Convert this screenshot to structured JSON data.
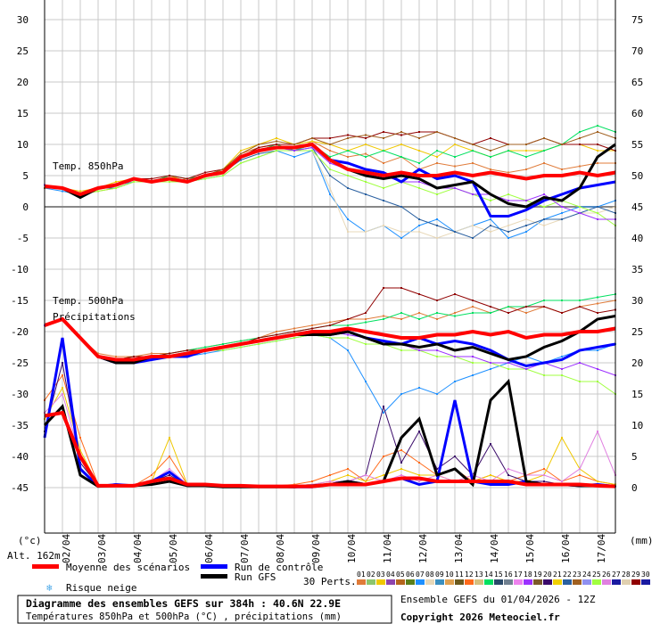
{
  "chart_data": {
    "type": "line",
    "title": "Diagramme des ensembles GEFS sur 384h : 40.6N 22.9E",
    "subtitle": "Températures 850hPa et 500hPa (°C) , précipitations (mm)",
    "run_label": "Ensemble GEFS du 01/04/2026 - 12Z",
    "copyright": "Copyright 2026 Meteociel.fr",
    "left_unit": "(°c)",
    "right_unit": "(mm)",
    "altitude": "Alt. 162m",
    "label_850": "Temp. 850hPa",
    "label_500": "Temp. 500hPa",
    "label_precip": "Précipitations",
    "left_ticks": [
      30,
      25,
      20,
      15,
      10,
      5,
      0,
      -5,
      -10,
      -15,
      -20,
      -25,
      -30,
      -35,
      -40,
      -45
    ],
    "right_ticks": [
      75,
      70,
      65,
      60,
      55,
      50,
      45,
      40,
      35,
      30,
      25,
      20,
      15,
      10,
      5,
      0
    ],
    "ylim_left": [
      -52,
      33
    ],
    "x_step_hours": 12,
    "x_labels": [
      "02/04",
      "03/04",
      "04/04",
      "05/04",
      "06/04",
      "07/04",
      "08/04",
      "09/04",
      "10/04",
      "11/04",
      "12/04",
      "13/04",
      "14/04",
      "15/04",
      "16/04",
      "17/04"
    ],
    "legend": {
      "mean": "Moyenne des scénarios",
      "control": "Run de contrôle",
      "gfs": "Run GFS",
      "snow": "Risque neige",
      "perts": "30 Perts."
    },
    "colors": {
      "mean": "#ff0000",
      "control": "#0000ff",
      "gfs": "#000000",
      "snow": "#4aa8e8"
    },
    "pert_colors": [
      "#e07b39",
      "#8dc56c",
      "#f0c800",
      "#8e44ad",
      "#b5651d",
      "#5a7f1a",
      "#1e90ff",
      "#e8d8b8",
      "#3a8fc0",
      "#e0a050",
      "#6b5a1e",
      "#ff6a1a",
      "#d4c080",
      "#00e060",
      "#2a4a6a",
      "#708090",
      "#ee82ee",
      "#9b30ff",
      "#7b5a2a",
      "#3a0a6a",
      "#f0d000",
      "#2a60a0",
      "#a06020",
      "#9090f0",
      "#a0ff40",
      "#e080e0",
      "#1a1aa0",
      "#e0d0b0",
      "#900000",
      "#1a1aa0"
    ],
    "pert_ids": [
      "01",
      "02",
      "03",
      "04",
      "05",
      "06",
      "07",
      "08",
      "09",
      "10",
      "11",
      "12",
      "13",
      "14",
      "15",
      "16",
      "17",
      "18",
      "19",
      "20",
      "21",
      "22",
      "23",
      "24",
      "25",
      "26",
      "27",
      "28",
      "29",
      "30"
    ],
    "t850": {
      "mean": [
        3.3,
        3,
        2,
        3,
        3.5,
        4.5,
        4,
        4.5,
        4,
        5,
        5.5,
        8,
        9,
        9.5,
        9.5,
        10,
        7.5,
        6,
        5.5,
        5,
        5.5,
        5,
        5,
        5.5,
        5,
        5.5,
        5,
        4.5,
        5,
        5,
        5.5,
        5,
        5.5
      ],
      "control": [
        3.3,
        3,
        2,
        3,
        3.5,
        4.5,
        4,
        4.5,
        4,
        5,
        5.5,
        8,
        9,
        9.5,
        9.5,
        10,
        7.5,
        7,
        6,
        5.5,
        4,
        6,
        4.5,
        5,
        4,
        -1.5,
        -1.5,
        -0.5,
        1,
        2,
        3,
        3.5,
        4
      ],
      "gfs": [
        3.3,
        3,
        1.5,
        3,
        3.5,
        4.5,
        4,
        4.5,
        4,
        5,
        5.5,
        8,
        9,
        9.5,
        9.5,
        10,
        7.5,
        6,
        5,
        4.5,
        5,
        4.5,
        3,
        3.5,
        4,
        2,
        0.5,
        0,
        1.5,
        1,
        3,
        8,
        10
      ],
      "perts": [
        {
          "id": "01",
          "values": [
            3,
            3,
            2,
            2.5,
            3,
            4,
            4,
            4,
            4.5,
            5,
            6,
            8.5,
            9.5,
            10,
            9,
            10.5,
            9,
            8,
            8.5,
            7,
            8,
            6,
            7,
            6.5,
            7,
            6,
            5.5,
            6,
            7,
            6,
            6.5,
            7,
            7
          ]
        },
        {
          "id": "03",
          "values": [
            3.5,
            3,
            2.5,
            3,
            4,
            4.5,
            4,
            5,
            4,
            5,
            6,
            9,
            10,
            11,
            10,
            10.5,
            10,
            9,
            10,
            9,
            10,
            9,
            8,
            10,
            9,
            8,
            9,
            9,
            9,
            10,
            10,
            9,
            9
          ]
        },
        {
          "id": "07",
          "values": [
            3,
            2.5,
            2,
            3,
            3.5,
            4,
            4,
            4,
            4,
            4.5,
            5,
            7,
            8,
            9,
            8,
            9,
            2,
            -2,
            -4,
            -3,
            -5,
            -3,
            -2,
            -4,
            -3,
            -2,
            -5,
            -4,
            -2,
            -1,
            0,
            0,
            1
          ]
        },
        {
          "id": "08",
          "values": [
            3,
            3,
            2,
            3,
            3,
            4,
            4,
            4.5,
            4,
            5,
            5,
            7,
            8,
            9,
            9,
            9,
            3,
            -4,
            -4,
            -3,
            -4,
            -4,
            -5,
            -4,
            -3,
            -4,
            -3,
            -2,
            -3,
            -2,
            -1,
            -1,
            0
          ]
        },
        {
          "id": "14",
          "values": [
            3.5,
            3,
            2,
            3,
            3.5,
            4.5,
            4,
            5,
            4.5,
            5,
            6,
            8,
            9,
            10,
            9,
            10,
            8,
            9,
            8,
            9,
            8,
            7,
            9,
            8,
            9,
            8,
            9,
            8,
            9,
            10,
            12,
            13,
            12
          ]
        },
        {
          "id": "22",
          "values": [
            3,
            3,
            2,
            3,
            3,
            4,
            4,
            4,
            4,
            5,
            5.5,
            7.5,
            8.5,
            9,
            9,
            9.5,
            5,
            3,
            2,
            1,
            0,
            -2,
            -3,
            -4,
            -5,
            -3,
            -4,
            -3,
            -2,
            -2,
            -1,
            0,
            -1
          ]
        },
        {
          "id": "29",
          "values": [
            3.5,
            3,
            2,
            3,
            3.5,
            4.5,
            4.5,
            5,
            4.5,
            5.5,
            6,
            8,
            9.5,
            10,
            10,
            11,
            11,
            11.5,
            11,
            12,
            11.5,
            12,
            12,
            11,
            10,
            11,
            10,
            10,
            11,
            10,
            10,
            10,
            9
          ]
        },
        {
          "id": "25",
          "values": [
            3,
            3,
            2,
            2.5,
            3,
            4,
            4,
            4,
            4,
            4.5,
            5,
            7,
            8,
            9,
            9,
            9,
            6,
            5,
            4,
            3,
            4,
            3,
            2,
            3,
            2,
            1,
            2,
            1,
            0,
            1,
            0,
            -1,
            -3
          ]
        },
        {
          "id": "18",
          "values": [
            3.5,
            3,
            2,
            3,
            3.5,
            4.5,
            4,
            4.5,
            4,
            5,
            5.5,
            8,
            9,
            9.5,
            9,
            9.5,
            7,
            6,
            5,
            5,
            4,
            4,
            3,
            3,
            2,
            2,
            1,
            1,
            2,
            0,
            -1,
            -2,
            -2
          ]
        },
        {
          "id": "23",
          "values": [
            3,
            3,
            2,
            3,
            3.5,
            4.5,
            4,
            4.5,
            4,
            5,
            6,
            8.5,
            10,
            10.5,
            10,
            11,
            10,
            11,
            11.5,
            11,
            12,
            11,
            12,
            11,
            10,
            9,
            10,
            10,
            11,
            10,
            11,
            12,
            11
          ]
        }
      ]
    },
    "t500": {
      "mean": [
        -19,
        -18,
        -21,
        -24,
        -24.5,
        -24.5,
        -24,
        -24,
        -23.5,
        -23,
        -22.5,
        -22,
        -21.5,
        -21,
        -20.5,
        -20,
        -20,
        -19.5,
        -20,
        -20.5,
        -21,
        -21,
        -20.5,
        -20.5,
        -20,
        -20.5,
        -20,
        -21,
        -20.5,
        -20.5,
        -20,
        -20,
        -19.5
      ],
      "control": [
        -19,
        -18,
        -21,
        -24,
        -25,
        -25,
        -24.5,
        -24,
        -24,
        -23,
        -22.5,
        -22,
        -21.5,
        -21,
        -20.5,
        -20,
        -20.5,
        -20,
        -21,
        -21.5,
        -22,
        -21,
        -22,
        -21.5,
        -22,
        -23,
        -24.5,
        -25.5,
        -25,
        -24.5,
        -23,
        -22.5,
        -22
      ],
      "gfs": [
        -19,
        -18,
        -21,
        -24,
        -25,
        -25,
        -24,
        -24,
        -23.5,
        -23,
        -22.5,
        -22,
        -21.5,
        -21,
        -20.5,
        -20.5,
        -20.5,
        -20,
        -21,
        -22,
        -22,
        -22.5,
        -22,
        -23,
        -22.5,
        -23.5,
        -24.5,
        -24,
        -22.5,
        -21.5,
        -20,
        -18,
        -17.5
      ],
      "perts": [
        {
          "id": "01",
          "values": [
            -19,
            -18,
            -21,
            -23.5,
            -24,
            -24,
            -23.5,
            -23.5,
            -23,
            -22.5,
            -22,
            -21.5,
            -21,
            -20,
            -19.5,
            -19,
            -18.5,
            -18,
            -18,
            -17.5,
            -18,
            -17,
            -18,
            -17,
            -16,
            -17,
            -16,
            -17,
            -16,
            -17,
            -16,
            -15.5,
            -15
          ]
        },
        {
          "id": "07",
          "values": [
            -19,
            -18,
            -21,
            -24,
            -24.5,
            -24.5,
            -24,
            -24,
            -24,
            -23.5,
            -23,
            -22.5,
            -22,
            -21.5,
            -21,
            -20.5,
            -21,
            -23,
            -28,
            -33,
            -30,
            -29,
            -30,
            -28,
            -27,
            -26,
            -25,
            -24,
            -25,
            -24,
            -23,
            -23,
            -22
          ]
        },
        {
          "id": "14",
          "values": [
            -19,
            -18,
            -21,
            -24,
            -24.5,
            -24,
            -24,
            -23.5,
            -23,
            -22.5,
            -22,
            -21.5,
            -21,
            -20.5,
            -20,
            -19.5,
            -19,
            -19,
            -18.5,
            -18,
            -17,
            -18,
            -17,
            -17.5,
            -17,
            -17,
            -16,
            -16,
            -15,
            -15,
            -15,
            -14.5,
            -14
          ]
        },
        {
          "id": "29",
          "values": [
            -19,
            -18,
            -21,
            -24,
            -24.5,
            -24,
            -24,
            -23.5,
            -23,
            -23,
            -22.5,
            -22,
            -21,
            -20.5,
            -20,
            -19.5,
            -19,
            -18,
            -17,
            -13,
            -13,
            -14,
            -15,
            -14,
            -15,
            -16,
            -17,
            -16,
            -16,
            -17,
            -16,
            -17,
            -16.5
          ]
        },
        {
          "id": "25",
          "values": [
            -19,
            -18,
            -21,
            -24,
            -25,
            -25,
            -24.5,
            -24,
            -24,
            -23,
            -23,
            -22.5,
            -22,
            -21.5,
            -21,
            -20.5,
            -21,
            -21,
            -22,
            -22,
            -23,
            -23,
            -24,
            -24,
            -25,
            -25,
            -26,
            -26,
            -27,
            -27,
            -28,
            -28,
            -30
          ]
        },
        {
          "id": "18",
          "values": [
            -19,
            -18,
            -21,
            -24,
            -24.5,
            -24.5,
            -24,
            -24,
            -23.5,
            -23,
            -22.5,
            -22,
            -21.5,
            -21,
            -20.5,
            -20,
            -20,
            -20.5,
            -21,
            -22,
            -22,
            -23,
            -23,
            -24,
            -24,
            -25,
            -25,
            -26,
            -25,
            -26,
            -25,
            -26,
            -27
          ]
        }
      ]
    },
    "precip": {
      "mean": [
        11.5,
        12,
        5,
        0.3,
        0.3,
        0.3,
        1,
        1.5,
        0.5,
        0.5,
        0.3,
        0.3,
        0.2,
        0.2,
        0.2,
        0.2,
        0.5,
        0.5,
        0.5,
        1,
        1.5,
        1.5,
        1,
        1,
        1,
        1,
        1,
        0.5,
        0.5,
        0.5,
        0.5,
        0.3,
        0.2
      ],
      "control": [
        8,
        24,
        3,
        0.2,
        0.5,
        0.3,
        1,
        2.5,
        0.3,
        0.5,
        0.2,
        0.2,
        0.2,
        0.2,
        0.1,
        0.1,
        0.5,
        1,
        0.5,
        1,
        1.5,
        0.5,
        1,
        14,
        1,
        0.5,
        0.5,
        1,
        0.5,
        0.5,
        0.3,
        0.5,
        0.2
      ],
      "gfs": [
        10,
        13,
        2,
        0.2,
        0.3,
        0.3,
        0.5,
        1,
        0.3,
        0.3,
        0.1,
        0.1,
        0.1,
        0.1,
        0.1,
        0.3,
        0.5,
        1,
        0.5,
        1,
        8,
        11,
        2,
        3,
        0.5,
        14,
        17,
        1,
        0.5,
        0.5,
        0.3,
        0.3,
        0.2
      ],
      "perts": [
        {
          "id": "12",
          "values": [
            14,
            18,
            8,
            0.5,
            0.5,
            0.3,
            2,
            5,
            0.5,
            0.5,
            0.3,
            0.3,
            0.3,
            0.3,
            0.5,
            1,
            2,
            3,
            1,
            5,
            6,
            4,
            2,
            3,
            1,
            2,
            1,
            2,
            3,
            1,
            2,
            1,
            0.5
          ]
        },
        {
          "id": "20",
          "values": [
            9,
            20,
            4,
            0.3,
            0.5,
            0.5,
            1,
            2,
            0.3,
            0.3,
            0.2,
            0.2,
            0.2,
            0.2,
            0.3,
            0.5,
            0.5,
            1,
            2,
            13,
            4,
            9,
            3,
            5,
            2,
            7,
            2,
            1,
            1,
            0.5,
            0.5,
            0.3,
            0.2
          ]
        },
        {
          "id": "03",
          "values": [
            11,
            16,
            6,
            0.3,
            0.3,
            0.3,
            1,
            8,
            0.5,
            0.3,
            0.2,
            0.2,
            0.2,
            0.2,
            0.3,
            0.5,
            1,
            2,
            1,
            2,
            3,
            2,
            2,
            1,
            1,
            2,
            1,
            1,
            2,
            8,
            3,
            1,
            0.5
          ]
        },
        {
          "id": "26",
          "values": [
            12,
            15,
            5,
            0.5,
            0.5,
            0.5,
            1,
            3,
            0.5,
            0.5,
            0.2,
            0.2,
            0.2,
            0.3,
            0.3,
            0.5,
            1,
            1,
            2,
            1,
            2,
            1,
            2,
            1,
            2,
            1,
            3,
            2,
            2,
            1,
            3,
            9,
            2
          ]
        }
      ]
    }
  }
}
